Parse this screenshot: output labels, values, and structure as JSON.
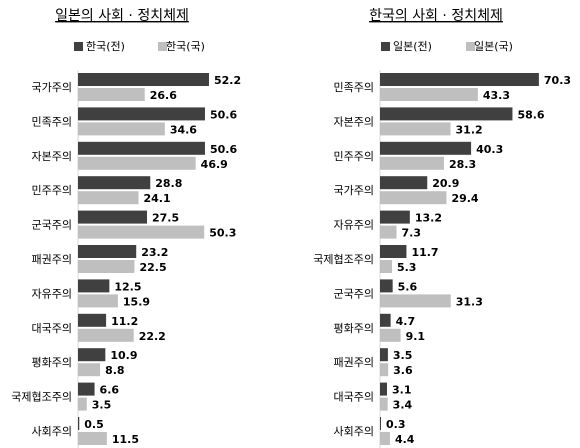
{
  "chart_data": [
    {
      "type": "bar",
      "orientation": "horizontal",
      "title": "일본의 사회 · 정치체제",
      "series": [
        {
          "name": "한국(전)",
          "color": "#404040",
          "values": [
            52.2,
            50.6,
            50.6,
            28.8,
            27.5,
            23.2,
            12.5,
            11.2,
            10.9,
            6.6,
            0.5
          ]
        },
        {
          "name": "한국(국)",
          "color": "#bfbfbf",
          "values": [
            26.6,
            34.6,
            46.9,
            24.1,
            50.3,
            22.5,
            15.9,
            22.2,
            8.8,
            3.5,
            11.5
          ]
        }
      ],
      "categories": [
        "국가주의",
        "민족주의",
        "자본주의",
        "민주주의",
        "군국주의",
        "패권주의",
        "자유주의",
        "대국주의",
        "평화주의",
        "국제협조주의",
        "사회주의"
      ],
      "xlim": [
        0,
        55
      ],
      "legend": "top"
    },
    {
      "type": "bar",
      "orientation": "horizontal",
      "title": "한국의 사회 · 정치체제",
      "series": [
        {
          "name": "일본(전)",
          "color": "#404040",
          "values": [
            70.3,
            58.6,
            40.3,
            20.9,
            13.2,
            11.7,
            5.6,
            4.7,
            3.5,
            3.1,
            0.3
          ]
        },
        {
          "name": "일본(국)",
          "color": "#bfbfbf",
          "values": [
            43.3,
            31.2,
            28.3,
            29.4,
            7.3,
            5.3,
            31.3,
            9.1,
            3.6,
            3.4,
            4.4
          ]
        }
      ],
      "categories": [
        "민족주의",
        "자본주의",
        "민주주의",
        "국가주의",
        "자유주의",
        "국제협조주의",
        "군국주의",
        "평화주의",
        "패권주의",
        "대국주의",
        "사회주의"
      ],
      "xlim": [
        0,
        73
      ],
      "legend": "top"
    }
  ]
}
